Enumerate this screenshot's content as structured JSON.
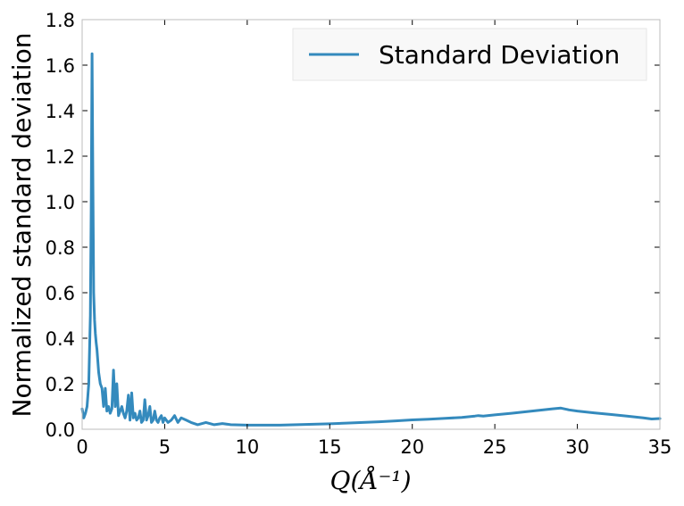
{
  "chart_data": {
    "type": "line",
    "title": "",
    "xlabel": "Q(Å⁻¹)",
    "ylabel": "Normalized standard deviation",
    "xlim": [
      0,
      35
    ],
    "ylim": [
      0,
      1.8
    ],
    "xticks": [
      0,
      5,
      10,
      15,
      20,
      25,
      30,
      35
    ],
    "yticks": [
      0.0,
      0.2,
      0.4,
      0.6,
      0.8,
      1.0,
      1.2,
      1.4,
      1.6,
      1.8
    ],
    "xtick_labels": [
      "0",
      "5",
      "10",
      "15",
      "20",
      "25",
      "30",
      "35"
    ],
    "ytick_labels": [
      "0.0",
      "0.2",
      "0.4",
      "0.6",
      "0.8",
      "1.0",
      "1.2",
      "1.4",
      "1.6",
      "1.8"
    ],
    "grid": false,
    "legend": {
      "position": "top-right",
      "entries": [
        "Standard Deviation"
      ]
    },
    "series": [
      {
        "name": "Standard Deviation",
        "color": "#348abd",
        "x": [
          0.0,
          0.1,
          0.2,
          0.3,
          0.4,
          0.5,
          0.55,
          0.6,
          0.65,
          0.7,
          0.75,
          0.8,
          0.85,
          0.9,
          1.0,
          1.1,
          1.2,
          1.3,
          1.4,
          1.5,
          1.6,
          1.7,
          1.8,
          1.9,
          2.0,
          2.1,
          2.2,
          2.3,
          2.4,
          2.5,
          2.6,
          2.7,
          2.8,
          2.9,
          3.0,
          3.1,
          3.2,
          3.3,
          3.4,
          3.5,
          3.6,
          3.7,
          3.8,
          3.9,
          4.0,
          4.1,
          4.2,
          4.3,
          4.4,
          4.5,
          4.6,
          4.7,
          4.8,
          4.9,
          5.0,
          5.2,
          5.4,
          5.6,
          5.8,
          6.0,
          6.3,
          6.6,
          7.0,
          7.5,
          8.0,
          8.5,
          9.0,
          10.0,
          11.0,
          12.0,
          13.0,
          14.0,
          15.0,
          16.0,
          17.0,
          18.0,
          19.0,
          20.0,
          21.0,
          22.0,
          23.0,
          23.8,
          24.0,
          24.3,
          25.0,
          26.0,
          27.0,
          28.0,
          28.5,
          29.0,
          29.5,
          30.0,
          31.0,
          32.0,
          33.0,
          34.0,
          34.5,
          35.0
        ],
        "y": [
          0.09,
          0.05,
          0.07,
          0.1,
          0.2,
          0.5,
          1.0,
          1.65,
          1.1,
          0.6,
          0.48,
          0.42,
          0.38,
          0.35,
          0.25,
          0.2,
          0.18,
          0.1,
          0.18,
          0.08,
          0.1,
          0.07,
          0.09,
          0.26,
          0.1,
          0.2,
          0.06,
          0.08,
          0.1,
          0.07,
          0.05,
          0.08,
          0.15,
          0.04,
          0.16,
          0.05,
          0.07,
          0.04,
          0.05,
          0.08,
          0.03,
          0.04,
          0.13,
          0.04,
          0.06,
          0.1,
          0.03,
          0.04,
          0.08,
          0.04,
          0.03,
          0.05,
          0.06,
          0.03,
          0.05,
          0.03,
          0.04,
          0.06,
          0.03,
          0.05,
          0.04,
          0.03,
          0.02,
          0.03,
          0.02,
          0.025,
          0.02,
          0.018,
          0.018,
          0.018,
          0.02,
          0.022,
          0.024,
          0.027,
          0.03,
          0.033,
          0.037,
          0.041,
          0.044,
          0.048,
          0.052,
          0.058,
          0.06,
          0.058,
          0.063,
          0.07,
          0.078,
          0.086,
          0.09,
          0.093,
          0.085,
          0.08,
          0.072,
          0.065,
          0.058,
          0.05,
          0.045,
          0.047
        ]
      }
    ]
  }
}
